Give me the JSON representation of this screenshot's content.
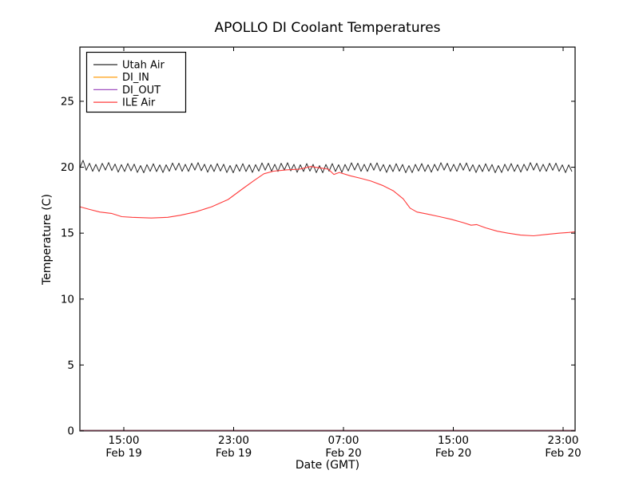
{
  "window": {
    "background": "#ffffff"
  },
  "chart_data": {
    "type": "line",
    "title": "APOLLO DI Coolant Temperatures",
    "xlabel": "Date (GMT)",
    "ylabel": "Temperature (C)",
    "ylim": [
      0,
      29.1
    ],
    "grid": false,
    "y_ticks": [
      "0",
      "5",
      "10",
      "15",
      "20",
      "25"
    ],
    "y_tick_values": [
      0,
      5,
      10,
      15,
      20,
      25
    ],
    "x_ticks": [
      {
        "t": 15,
        "time": "15:00",
        "date": "Feb 19"
      },
      {
        "t": 23,
        "time": "23:00",
        "date": "Feb 19"
      },
      {
        "t": 31,
        "time": "07:00",
        "date": "Feb 20"
      },
      {
        "t": 39,
        "time": "15:00",
        "date": "Feb 20"
      },
      {
        "t": 47,
        "time": "23:00",
        "date": "Feb 20"
      }
    ],
    "x_range_hours_from_feb19_0000": [
      11.8,
      47.87
    ],
    "legend": {
      "position": "upper-left",
      "entries": [
        {
          "label": "Utah Air",
          "color": "#2a2a2a"
        },
        {
          "label": "DI_IN",
          "color": "#ffa826"
        },
        {
          "label": "DI_OUT",
          "color": "#a050c0"
        },
        {
          "label": "ILE Air",
          "color": "#ff3b3b"
        }
      ]
    },
    "baseline_blend_color": "#6e3f4e",
    "series": [
      {
        "name": "DI_IN",
        "color": "#ffa826",
        "constant": 0
      },
      {
        "name": "DI_OUT",
        "color": "#a050c0",
        "constant": 0
      },
      {
        "name": "Utah Air",
        "color": "#2a2a2a",
        "pattern": "sawtooth",
        "mean": 19.96,
        "min": 19.68,
        "max": 20.24,
        "period_hours": 0.465,
        "start_spike": 20.52
      },
      {
        "name": "ILE Air",
        "color": "#ff3b3b",
        "points": [
          [
            11.8,
            17.0
          ],
          [
            12.5,
            16.8
          ],
          [
            13.25,
            16.6
          ],
          [
            14.1,
            16.5
          ],
          [
            14.85,
            16.25
          ],
          [
            15.6,
            16.2
          ],
          [
            17.0,
            16.15
          ],
          [
            18.2,
            16.2
          ],
          [
            19.1,
            16.35
          ],
          [
            20.2,
            16.6
          ],
          [
            21.4,
            17.0
          ],
          [
            22.6,
            17.55
          ],
          [
            23.7,
            18.4
          ],
          [
            24.5,
            19.0
          ],
          [
            25.2,
            19.5
          ],
          [
            25.9,
            19.7
          ],
          [
            26.9,
            19.8
          ],
          [
            27.8,
            19.85
          ],
          [
            28.6,
            20.05
          ],
          [
            29.3,
            19.95
          ],
          [
            29.9,
            19.85
          ],
          [
            30.3,
            19.45
          ],
          [
            30.7,
            19.6
          ],
          [
            31.5,
            19.35
          ],
          [
            32.3,
            19.15
          ],
          [
            33.0,
            18.95
          ],
          [
            33.9,
            18.6
          ],
          [
            34.65,
            18.2
          ],
          [
            35.35,
            17.6
          ],
          [
            35.85,
            16.9
          ],
          [
            36.35,
            16.6
          ],
          [
            37.1,
            16.45
          ],
          [
            38.0,
            16.25
          ],
          [
            38.85,
            16.05
          ],
          [
            39.7,
            15.8
          ],
          [
            40.3,
            15.6
          ],
          [
            40.7,
            15.65
          ],
          [
            41.35,
            15.4
          ],
          [
            42.2,
            15.15
          ],
          [
            43.0,
            15.0
          ],
          [
            43.9,
            14.85
          ],
          [
            44.85,
            14.8
          ],
          [
            45.75,
            14.9
          ],
          [
            46.7,
            15.0
          ],
          [
            47.4,
            15.05
          ],
          [
            47.87,
            15.1
          ]
        ]
      }
    ]
  }
}
